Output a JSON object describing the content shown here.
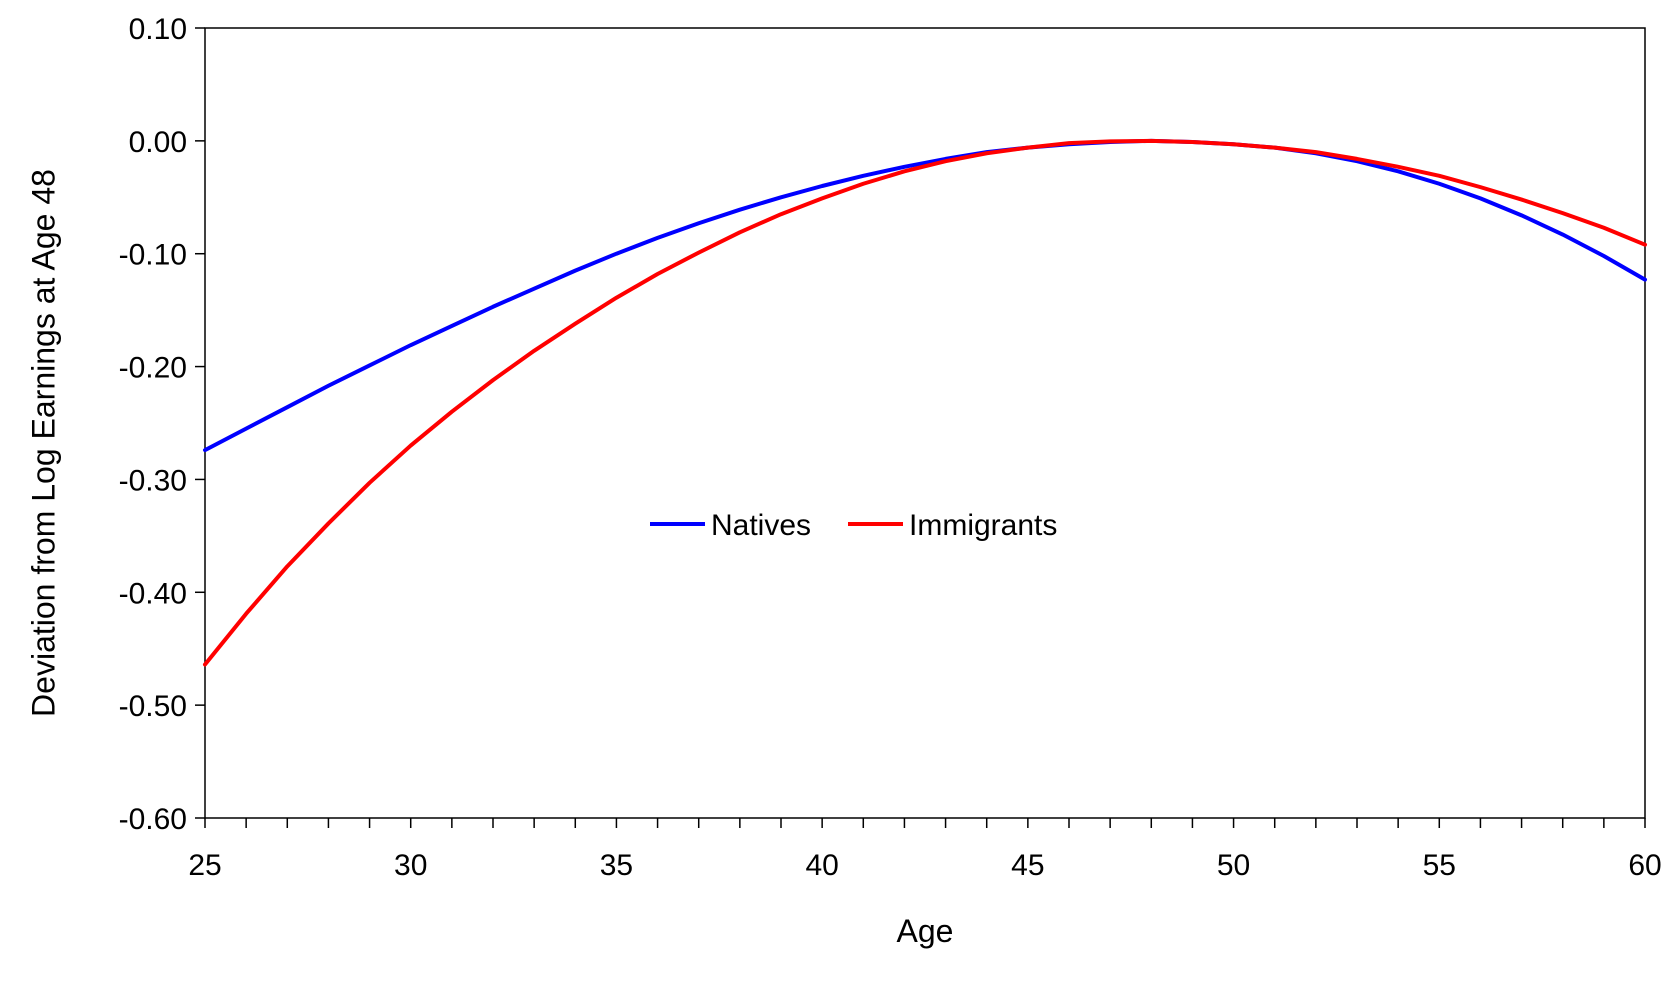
{
  "chart_data": {
    "type": "line",
    "title": "",
    "xlabel": "Age",
    "ylabel": "Deviation from Log Earnings at Age 48",
    "xlim": [
      25,
      60
    ],
    "ylim": [
      -0.6,
      0.1
    ],
    "x_ticks": [
      25,
      30,
      35,
      40,
      45,
      50,
      55,
      60
    ],
    "x_tick_labels": [
      "25",
      "30",
      "35",
      "40",
      "45",
      "50",
      "55",
      "60"
    ],
    "y_ticks": [
      0.1,
      0.0,
      -0.1,
      -0.2,
      -0.3,
      -0.4,
      -0.5,
      -0.6
    ],
    "y_tick_labels": [
      "0.10",
      "0.00",
      "-0.10",
      "-0.20",
      "-0.30",
      "-0.40",
      "-0.50",
      "-0.60"
    ],
    "grid": false,
    "legend_position": "center",
    "x": [
      25,
      26,
      27,
      28,
      29,
      30,
      31,
      32,
      33,
      34,
      35,
      36,
      37,
      38,
      39,
      40,
      41,
      42,
      43,
      44,
      45,
      46,
      47,
      48,
      49,
      50,
      51,
      52,
      53,
      54,
      55,
      56,
      57,
      58,
      59,
      60
    ],
    "series": [
      {
        "name": "Natives",
        "color": "#0000ff",
        "values": [
          -0.274,
          -0.255,
          -0.236,
          -0.217,
          -0.199,
          -0.181,
          -0.164,
          -0.147,
          -0.131,
          -0.115,
          -0.1,
          -0.086,
          -0.073,
          -0.061,
          -0.05,
          -0.04,
          -0.031,
          -0.023,
          -0.016,
          -0.01,
          -0.006,
          -0.003,
          -0.001,
          0.0,
          -0.001,
          -0.003,
          -0.006,
          -0.011,
          -0.018,
          -0.027,
          -0.038,
          -0.051,
          -0.066,
          -0.083,
          -0.102,
          -0.123
        ]
      },
      {
        "name": "Immigrants",
        "color": "#ff0000",
        "values": [
          -0.464,
          -0.419,
          -0.377,
          -0.339,
          -0.303,
          -0.27,
          -0.24,
          -0.212,
          -0.186,
          -0.162,
          -0.139,
          -0.118,
          -0.099,
          -0.081,
          -0.065,
          -0.051,
          -0.038,
          -0.027,
          -0.018,
          -0.011,
          -0.006,
          -0.002,
          -0.0005,
          0.0,
          -0.001,
          -0.003,
          -0.006,
          -0.01,
          -0.016,
          -0.023,
          -0.031,
          -0.041,
          -0.052,
          -0.064,
          -0.077,
          -0.092
        ]
      }
    ]
  }
}
